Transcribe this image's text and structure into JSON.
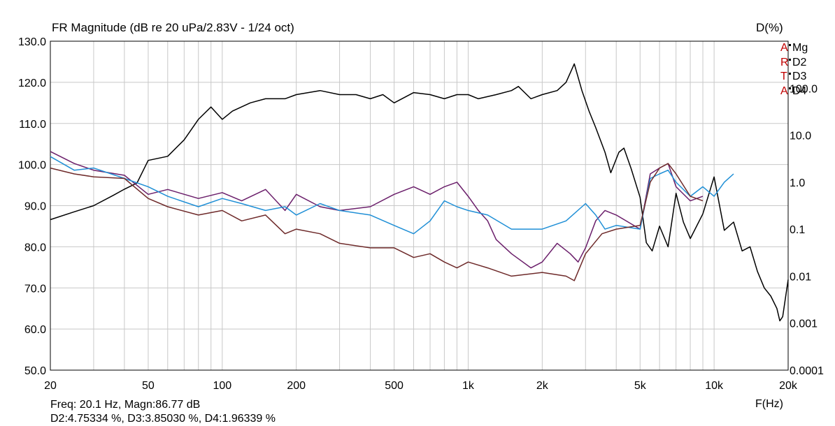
{
  "header": {
    "title": "FR Magnitude (dB re 20 uPa/2.83V - 1/24 oct)",
    "right_axis_title": "D(%)",
    "x_axis_title": "F(Hz)"
  },
  "legend": {
    "letters": [
      "A",
      "R",
      "T",
      "A"
    ],
    "entries": [
      "Mg",
      "D2",
      "D3",
      "D4"
    ]
  },
  "readout": {
    "line1": "Freq: 20.1 Hz, Magn:86.77 dB",
    "line2": "D2:4.75334 %, D3:3.85030 %, D4:1.96339 %"
  },
  "colors": {
    "Mg": "#000000",
    "D2": "#6b1f6b",
    "D3": "#1f8fd6",
    "D4": "#6e2a2a",
    "grid": "#c8c8c8"
  },
  "chart_data": {
    "type": "line",
    "x_scale": "log",
    "xlim": [
      20,
      20000
    ],
    "ylim_left": [
      50,
      130
    ],
    "ylim_right_log": [
      0.0001,
      1000
    ],
    "grid": true,
    "legend_position": "top-right",
    "x_tick_labels": [
      {
        "v": 20,
        "t": "20"
      },
      {
        "v": 50,
        "t": "50"
      },
      {
        "v": 100,
        "t": "100"
      },
      {
        "v": 200,
        "t": "200"
      },
      {
        "v": 500,
        "t": "500"
      },
      {
        "v": 1000,
        "t": "1k"
      },
      {
        "v": 2000,
        "t": "2k"
      },
      {
        "v": 5000,
        "t": "5k"
      },
      {
        "v": 10000,
        "t": "10k"
      },
      {
        "v": 20000,
        "t": "20k"
      }
    ],
    "y_tick_labels": [
      "50.0",
      "60.0",
      "70.0",
      "80.0",
      "90.0",
      "100.0",
      "110.0",
      "120.0",
      "130.0"
    ],
    "y2_tick_labels": [
      {
        "v": 100,
        "t": "100.0"
      },
      {
        "v": 10,
        "t": "10.0"
      },
      {
        "v": 1,
        "t": "1.0"
      },
      {
        "v": 0.1,
        "t": "0.1"
      },
      {
        "v": 0.01,
        "t": "0.01"
      },
      {
        "v": 0.001,
        "t": "0.001"
      },
      {
        "v": 0.0001,
        "t": "0.0001"
      }
    ],
    "series": [
      {
        "name": "Mg",
        "axis": "left",
        "points": [
          [
            20,
            86.6
          ],
          [
            25,
            88.5
          ],
          [
            30,
            90
          ],
          [
            36,
            92.5
          ],
          [
            40,
            94
          ],
          [
            45,
            95.5
          ],
          [
            50,
            101
          ],
          [
            60,
            102
          ],
          [
            70,
            106
          ],
          [
            80,
            111
          ],
          [
            90,
            114
          ],
          [
            100,
            111
          ],
          [
            110,
            113
          ],
          [
            130,
            115
          ],
          [
            150,
            116
          ],
          [
            180,
            116
          ],
          [
            200,
            117
          ],
          [
            250,
            118
          ],
          [
            300,
            117
          ],
          [
            350,
            117
          ],
          [
            400,
            116
          ],
          [
            450,
            117
          ],
          [
            500,
            115
          ],
          [
            600,
            117.5
          ],
          [
            700,
            117
          ],
          [
            800,
            116
          ],
          [
            900,
            117
          ],
          [
            1000,
            117
          ],
          [
            1100,
            116
          ],
          [
            1300,
            117
          ],
          [
            1500,
            118
          ],
          [
            1600,
            119
          ],
          [
            1800,
            116
          ],
          [
            2000,
            117
          ],
          [
            2300,
            118
          ],
          [
            2500,
            120
          ],
          [
            2700,
            124.5
          ],
          [
            2900,
            118
          ],
          [
            3100,
            113
          ],
          [
            3300,
            109
          ],
          [
            3600,
            103
          ],
          [
            3800,
            98
          ],
          [
            4100,
            103
          ],
          [
            4300,
            104
          ],
          [
            4600,
            99
          ],
          [
            5000,
            92
          ],
          [
            5300,
            81
          ],
          [
            5600,
            79
          ],
          [
            6000,
            85
          ],
          [
            6500,
            80
          ],
          [
            7000,
            93
          ],
          [
            7500,
            86
          ],
          [
            8000,
            82
          ],
          [
            9000,
            88
          ],
          [
            10000,
            97
          ],
          [
            11000,
            84
          ],
          [
            12000,
            86
          ],
          [
            13000,
            79
          ],
          [
            14000,
            80
          ],
          [
            15000,
            74
          ],
          [
            16000,
            70
          ],
          [
            17000,
            68
          ],
          [
            18000,
            65
          ],
          [
            18500,
            62
          ],
          [
            19000,
            63
          ],
          [
            20000,
            72
          ]
        ]
      },
      {
        "name": "D2",
        "axis": "right",
        "points": [
          [
            20,
            4.5
          ],
          [
            25,
            2.5
          ],
          [
            30,
            1.8
          ],
          [
            40,
            1.4
          ],
          [
            50,
            0.55
          ],
          [
            60,
            0.7
          ],
          [
            80,
            0.45
          ],
          [
            100,
            0.6
          ],
          [
            120,
            0.4
          ],
          [
            150,
            0.7
          ],
          [
            180,
            0.25
          ],
          [
            200,
            0.55
          ],
          [
            250,
            0.3
          ],
          [
            300,
            0.25
          ],
          [
            400,
            0.3
          ],
          [
            500,
            0.55
          ],
          [
            600,
            0.8
          ],
          [
            700,
            0.55
          ],
          [
            800,
            0.8
          ],
          [
            900,
            1.0
          ],
          [
            1000,
            0.5
          ],
          [
            1100,
            0.25
          ],
          [
            1200,
            0.15
          ],
          [
            1300,
            0.06
          ],
          [
            1500,
            0.03
          ],
          [
            1800,
            0.015
          ],
          [
            2000,
            0.02
          ],
          [
            2300,
            0.05
          ],
          [
            2600,
            0.03
          ],
          [
            2800,
            0.02
          ],
          [
            3000,
            0.04
          ],
          [
            3300,
            0.15
          ],
          [
            3600,
            0.25
          ],
          [
            4000,
            0.2
          ],
          [
            5000,
            0.1
          ],
          [
            5500,
            1.5
          ],
          [
            6000,
            2
          ],
          [
            6500,
            2.5
          ],
          [
            7000,
            0.8
          ],
          [
            8000,
            0.4
          ],
          [
            9000,
            0.5
          ]
        ]
      },
      {
        "name": "D3",
        "axis": "right",
        "points": [
          [
            20,
            3.5
          ],
          [
            25,
            1.8
          ],
          [
            30,
            2
          ],
          [
            40,
            1.2
          ],
          [
            50,
            0.8
          ],
          [
            60,
            0.5
          ],
          [
            80,
            0.3
          ],
          [
            100,
            0.45
          ],
          [
            120,
            0.35
          ],
          [
            150,
            0.25
          ],
          [
            180,
            0.3
          ],
          [
            200,
            0.2
          ],
          [
            250,
            0.35
          ],
          [
            300,
            0.25
          ],
          [
            400,
            0.2
          ],
          [
            500,
            0.12
          ],
          [
            600,
            0.08
          ],
          [
            700,
            0.15
          ],
          [
            800,
            0.4
          ],
          [
            900,
            0.3
          ],
          [
            1000,
            0.25
          ],
          [
            1200,
            0.2
          ],
          [
            1500,
            0.1
          ],
          [
            2000,
            0.1
          ],
          [
            2500,
            0.15
          ],
          [
            3000,
            0.35
          ],
          [
            3300,
            0.2
          ],
          [
            3600,
            0.1
          ],
          [
            4000,
            0.12
          ],
          [
            5000,
            0.1
          ],
          [
            5500,
            1.2
          ],
          [
            6000,
            1.5
          ],
          [
            6500,
            1.8
          ],
          [
            7000,
            1.0
          ],
          [
            8000,
            0.5
          ],
          [
            9000,
            0.8
          ],
          [
            10000,
            0.5
          ],
          [
            11000,
            1.0
          ],
          [
            12000,
            1.5
          ]
        ]
      },
      {
        "name": "D4",
        "axis": "right",
        "points": [
          [
            20,
            2
          ],
          [
            25,
            1.5
          ],
          [
            30,
            1.3
          ],
          [
            40,
            1.2
          ],
          [
            50,
            0.45
          ],
          [
            60,
            0.3
          ],
          [
            80,
            0.2
          ],
          [
            100,
            0.25
          ],
          [
            120,
            0.15
          ],
          [
            150,
            0.2
          ],
          [
            180,
            0.08
          ],
          [
            200,
            0.1
          ],
          [
            250,
            0.08
          ],
          [
            300,
            0.05
          ],
          [
            400,
            0.04
          ],
          [
            500,
            0.04
          ],
          [
            600,
            0.025
          ],
          [
            700,
            0.03
          ],
          [
            800,
            0.02
          ],
          [
            900,
            0.015
          ],
          [
            1000,
            0.02
          ],
          [
            1200,
            0.015
          ],
          [
            1500,
            0.01
          ],
          [
            2000,
            0.012
          ],
          [
            2500,
            0.01
          ],
          [
            2700,
            0.008
          ],
          [
            3000,
            0.03
          ],
          [
            3500,
            0.08
          ],
          [
            4000,
            0.1
          ],
          [
            5000,
            0.12
          ],
          [
            5500,
            1
          ],
          [
            6000,
            2
          ],
          [
            6500,
            2.5
          ],
          [
            7000,
            1.5
          ],
          [
            8000,
            0.5
          ],
          [
            9000,
            0.4
          ]
        ]
      }
    ]
  }
}
